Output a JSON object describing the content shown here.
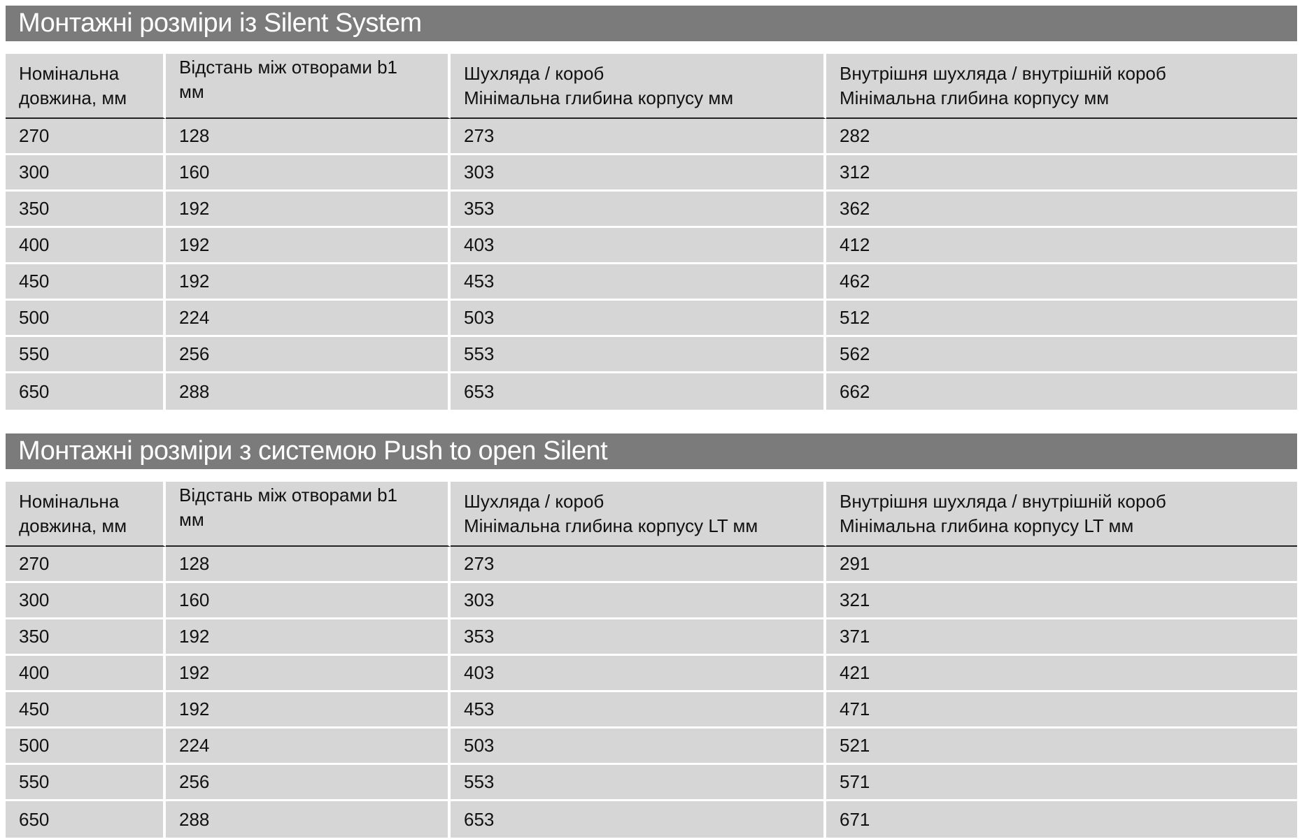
{
  "tables": [
    {
      "title": "Монтажні розміри із Silent System",
      "headers": [
        [
          "Номінальна",
          "довжина, мм"
        ],
        [
          "Відстань між отворами b1",
          "мм"
        ],
        [
          "Шухляда / короб",
          "Мінімальна глибина корпусу мм"
        ],
        [
          "Внутрішня шухляда / внутрішній короб",
          "Мінімальна глибина корпусу мм"
        ]
      ],
      "rows": [
        [
          "270",
          "128",
          "273",
          "282"
        ],
        [
          "300",
          "160",
          "303",
          "312"
        ],
        [
          "350",
          "192",
          "353",
          "362"
        ],
        [
          "400",
          "192",
          "403",
          "412"
        ],
        [
          "450",
          "192",
          "453",
          "462"
        ],
        [
          "500",
          "224",
          "503",
          "512"
        ],
        [
          "550",
          "256",
          "553",
          "562"
        ],
        [
          "650",
          "288",
          "653",
          "662"
        ]
      ]
    },
    {
      "title": "Монтажні розміри з системою Push to open Silent",
      "headers": [
        [
          "Номінальна",
          "довжина, мм"
        ],
        [
          "Відстань між отворами b1",
          "мм"
        ],
        [
          "Шухляда / короб",
          "Мінімальна глибина корпусу LT мм"
        ],
        [
          "Внутрішня шухляда / внутрішній короб",
          "Мінімальна глибина корпусу LT мм"
        ]
      ],
      "rows": [
        [
          "270",
          "128",
          "273",
          "291"
        ],
        [
          "300",
          "160",
          "303",
          "321"
        ],
        [
          "350",
          "192",
          "353",
          "371"
        ],
        [
          "400",
          "192",
          "403",
          "421"
        ],
        [
          "450",
          "192",
          "453",
          "471"
        ],
        [
          "500",
          "224",
          "503",
          "521"
        ],
        [
          "550",
          "256",
          "553",
          "571"
        ],
        [
          "650",
          "288",
          "653",
          "671"
        ]
      ]
    }
  ],
  "colors": {
    "title_bar": "#7b7b7b",
    "cell": "#d6d6d6",
    "title_text": "#ffffff"
  }
}
